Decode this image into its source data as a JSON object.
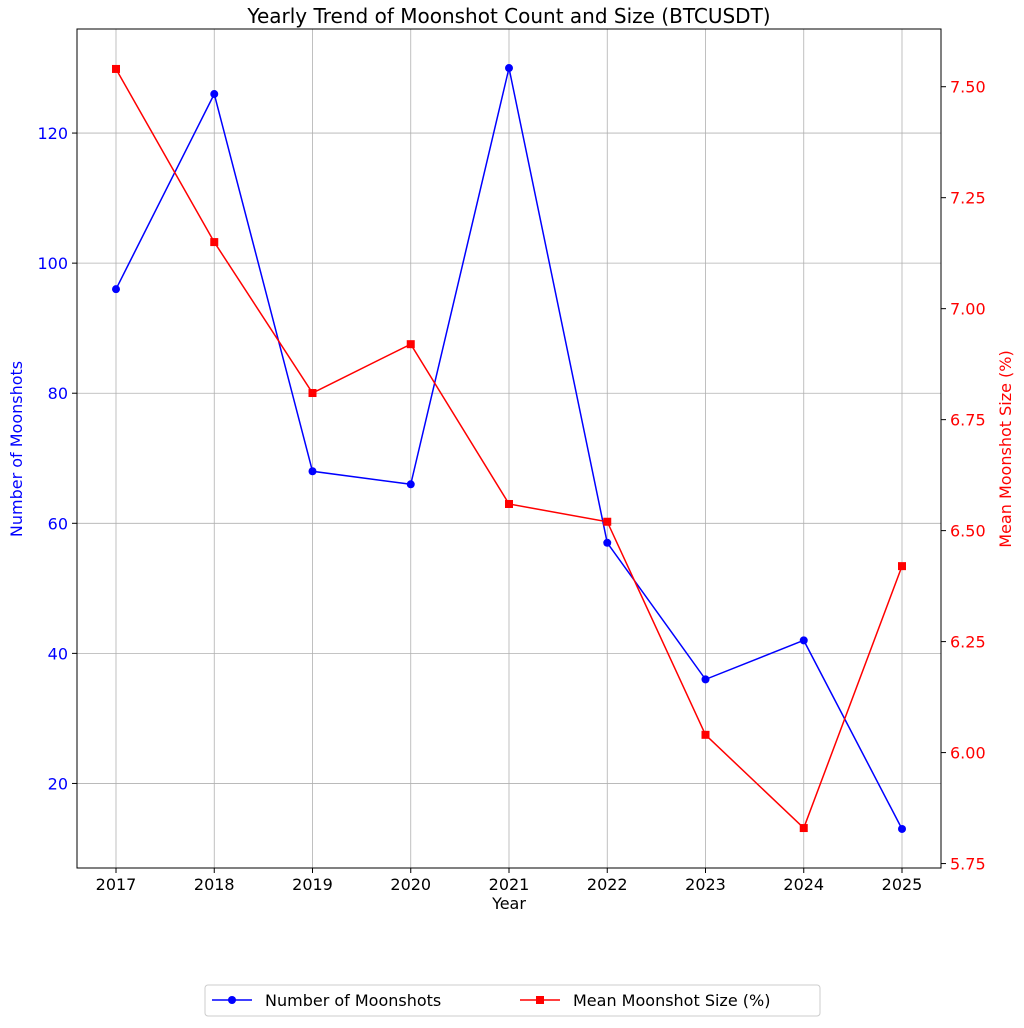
{
  "chart_data": {
    "type": "line",
    "title": "Yearly Trend of Moonshot Count and Size (BTCUSDT)",
    "xlabel": "Year",
    "ylabel_left": "Number of Moonshots",
    "ylabel_right": "Mean Moonshot Size (%)",
    "categories": [
      "2017",
      "2018",
      "2019",
      "2020",
      "2021",
      "2022",
      "2023",
      "2024",
      "2025"
    ],
    "y_left_ticks": [
      20,
      40,
      60,
      80,
      100,
      120
    ],
    "y_right_ticks": [
      "5.75",
      "6.00",
      "6.25",
      "6.50",
      "6.75",
      "7.00",
      "7.25",
      "7.50"
    ],
    "y_left_range": [
      7,
      136
    ],
    "y_right_range": [
      5.74,
      7.63
    ],
    "grid": true,
    "legend_position": "bottom-center",
    "series": [
      {
        "name": "Number of Moonshots",
        "axis": "left",
        "color": "#0000ff",
        "marker": "circle",
        "values": [
          96,
          126,
          68,
          66,
          130,
          57,
          36,
          42,
          13
        ]
      },
      {
        "name": "Mean Moonshot Size (%)",
        "axis": "right",
        "color": "#ff0000",
        "marker": "square",
        "values": [
          7.54,
          7.15,
          6.81,
          6.92,
          6.56,
          6.52,
          6.04,
          5.83,
          6.42
        ]
      }
    ]
  }
}
